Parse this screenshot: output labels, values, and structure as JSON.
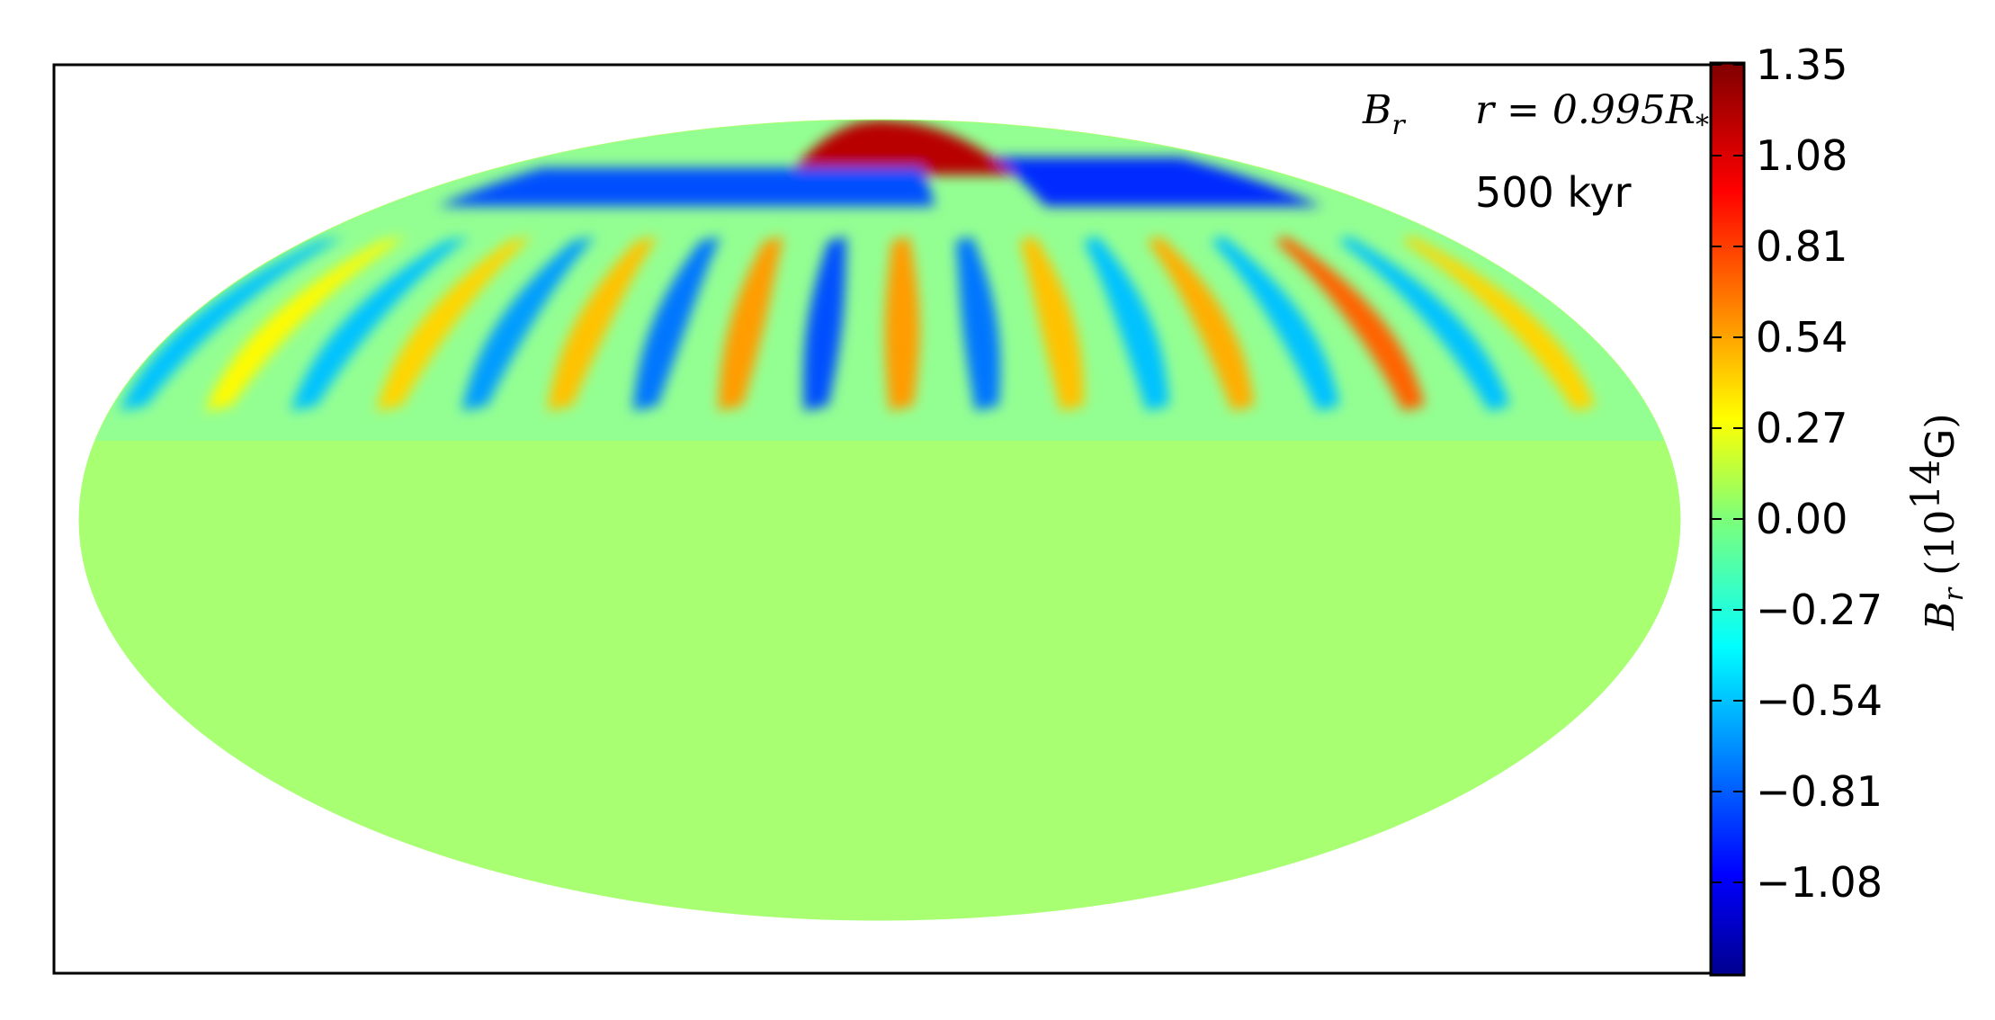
{
  "chart_data": {
    "type": "heatmap",
    "projection": "mollweide",
    "annotations": {
      "field_symbol": "B",
      "field_subscript": "r",
      "radius_label": "r = 0.995R",
      "radius_subscript": "*",
      "time_label": "500 kyr"
    },
    "colorbar": {
      "label_symbol": "B",
      "label_subscript": "r",
      "label_unit_base": "10",
      "label_unit_exponent": "14",
      "label_unit_suffix": "G",
      "range": [
        -1.35,
        1.35
      ],
      "ticks": [
        "1.35",
        "1.08",
        "0.81",
        "0.54",
        "0.27",
        "0.00",
        "−0.27",
        "−0.54",
        "−0.81",
        "−1.08"
      ],
      "tick_values": [
        1.35,
        1.08,
        0.81,
        0.54,
        0.27,
        0.0,
        -0.27,
        -0.54,
        -0.81,
        -1.08
      ],
      "colormap": "jet"
    },
    "features": [
      {
        "region": "north polar cap",
        "lon": [
          -40,
          60
        ],
        "lat": [
          70,
          90
        ],
        "value": 1.2
      },
      {
        "region": "polar ring negative",
        "lon": [
          -160,
          20
        ],
        "lat": [
          62,
          72
        ],
        "value": -0.8
      },
      {
        "region": "polar ring negative",
        "lon": [
          60,
          160
        ],
        "lat": [
          62,
          75
        ],
        "value": -0.9
      },
      {
        "region": "streak",
        "lon": -175,
        "lat": [
          20,
          55
        ],
        "value": -0.5
      },
      {
        "region": "streak",
        "lon": -155,
        "lat": [
          20,
          55
        ],
        "value": 0.35
      },
      {
        "region": "streak",
        "lon": -135,
        "lat": [
          20,
          55
        ],
        "value": -0.5
      },
      {
        "region": "streak",
        "lon": -115,
        "lat": [
          20,
          55
        ],
        "value": 0.45
      },
      {
        "region": "streak",
        "lon": -95,
        "lat": [
          20,
          55
        ],
        "value": -0.6
      },
      {
        "region": "streak",
        "lon": -75,
        "lat": [
          20,
          55
        ],
        "value": 0.5
      },
      {
        "region": "streak",
        "lon": -55,
        "lat": [
          20,
          55
        ],
        "value": -0.7
      },
      {
        "region": "streak",
        "lon": -35,
        "lat": [
          20,
          55
        ],
        "value": 0.6
      },
      {
        "region": "streak",
        "lon": -15,
        "lat": [
          20,
          55
        ],
        "value": -0.8
      },
      {
        "region": "streak",
        "lon": 5,
        "lat": [
          20,
          55
        ],
        "value": 0.6
      },
      {
        "region": "streak",
        "lon": 25,
        "lat": [
          20,
          55
        ],
        "value": -0.7
      },
      {
        "region": "streak",
        "lon": 45,
        "lat": [
          20,
          55
        ],
        "value": 0.5
      },
      {
        "region": "streak",
        "lon": 65,
        "lat": [
          20,
          55
        ],
        "value": -0.5
      },
      {
        "region": "streak",
        "lon": 85,
        "lat": [
          20,
          55
        ],
        "value": 0.55
      },
      {
        "region": "streak",
        "lon": 105,
        "lat": [
          20,
          55
        ],
        "value": -0.5
      },
      {
        "region": "streak",
        "lon": 125,
        "lat": [
          20,
          55
        ],
        "value": 0.75
      },
      {
        "region": "streak",
        "lon": 145,
        "lat": [
          20,
          55
        ],
        "value": -0.5
      },
      {
        "region": "streak",
        "lon": 165,
        "lat": [
          20,
          55
        ],
        "value": 0.45
      }
    ]
  }
}
